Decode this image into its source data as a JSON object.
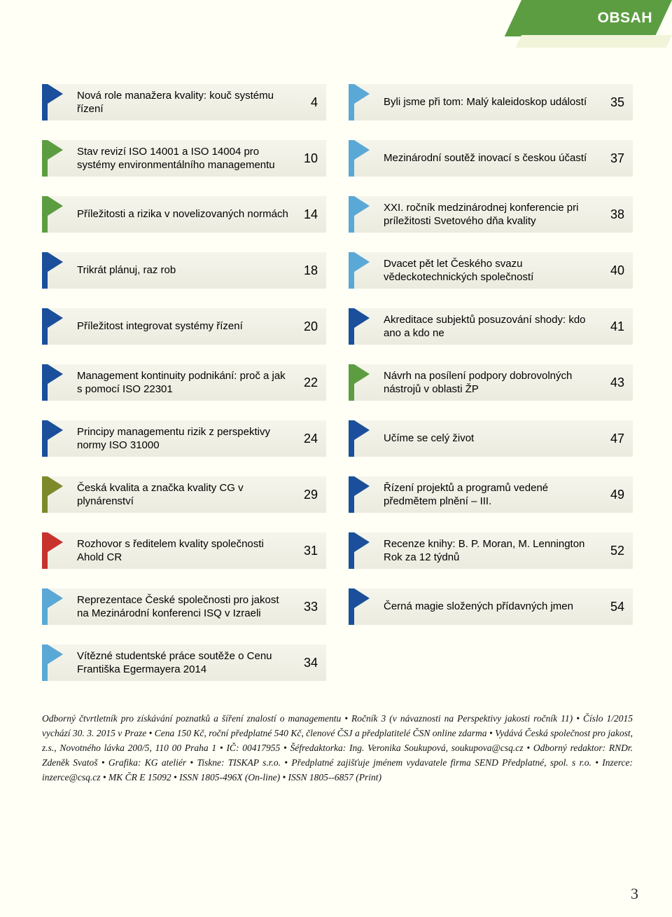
{
  "header": {
    "title": "OBSAH"
  },
  "accent_colors": {
    "dark_blue": "#1b4f9b",
    "green": "#5d9d42",
    "olive": "#7e8a2a",
    "red": "#c8322d",
    "light_blue": "#5aa8d6"
  },
  "background_color": "#fffff6",
  "item_bg_gradient": [
    "#f5f5ec",
    "#ebebdf"
  ],
  "entries_left": [
    {
      "title": "Nová role manažera kvality: kouč systému řízení",
      "page": 4,
      "accent": "#1b4f9b"
    },
    {
      "title": "Stav revizí ISO 14001 a ISO 14004 pro systémy environmentálního managementu",
      "page": 10,
      "accent": "#5d9d42"
    },
    {
      "title": "Příležitosti a rizika v novelizovaných normách",
      "page": 14,
      "accent": "#5d9d42"
    },
    {
      "title": "Trikrát plánuj, raz rob",
      "page": 18,
      "accent": "#1b4f9b"
    },
    {
      "title": "Příležitost integrovat systémy řízení",
      "page": 20,
      "accent": "#1b4f9b"
    },
    {
      "title": "Management kontinuity podnikání: proč a jak s pomocí ISO 22301",
      "page": 22,
      "accent": "#1b4f9b"
    },
    {
      "title": "Principy managementu rizik z perspektivy normy ISO 31000",
      "page": 24,
      "accent": "#1b4f9b"
    },
    {
      "title": "Česká kvalita a značka kvality CG v plynárenství",
      "page": 29,
      "accent": "#7e8a2a"
    },
    {
      "title": "Rozhovor s ředitelem kvality společnosti Ahold CR",
      "page": 31,
      "accent": "#c8322d"
    },
    {
      "title": "Reprezentace České společnosti pro jakost na Mezinárodní konferenci ISQ v Izraeli",
      "page": 33,
      "accent": "#5aa8d6"
    },
    {
      "title": "Vítězné studentské práce soutěže o Cenu Františka Egermayera 2014",
      "page": 34,
      "accent": "#5aa8d6"
    }
  ],
  "entries_right": [
    {
      "title": "Byli jsme při tom: Malý kaleidoskop událostí",
      "page": 35,
      "accent": "#5aa8d6"
    },
    {
      "title": "Mezinárodní soutěž inovací s českou účastí",
      "page": 37,
      "accent": "#5aa8d6"
    },
    {
      "title": "XXI. ročník medzinárodnej konferencie pri príležitosti Svetového dňa kvality",
      "page": 38,
      "accent": "#5aa8d6"
    },
    {
      "title": "Dvacet pět let Českého svazu vědeckotechnických společností",
      "page": 40,
      "accent": "#5aa8d6"
    },
    {
      "title": "Akreditace subjektů posuzování shody: kdo ano a kdo ne",
      "page": 41,
      "accent": "#1b4f9b"
    },
    {
      "title": "Návrh na posílení podpory dobrovolných nástrojů v oblasti ŽP",
      "page": 43,
      "accent": "#5d9d42"
    },
    {
      "title": "Učíme se celý život",
      "page": 47,
      "accent": "#1b4f9b"
    },
    {
      "title": "Řízení projektů a programů vedené předmětem plnění – III.",
      "page": 49,
      "accent": "#1b4f9b"
    },
    {
      "title": "Recenze knihy: B. P. Moran, M. Lennington Rok za 12 týdnů",
      "page": 52,
      "accent": "#1b4f9b"
    },
    {
      "title": "Černá magie složených přídavných jmen",
      "page": 54,
      "accent": "#1b4f9b"
    }
  ],
  "imprint": "Odborný čtvrtletník pro získávání poznatků a šíření znalostí o managementu • Ročník 3 (v návaznosti na Perspektivy jakosti ročník 11) • Číslo 1/2015 vychází 30. 3. 2015 v Praze • Cena 150 Kč, roční předplatné 540 Kč, členové ČSJ a předplatitelé ČSN online zdarma • Vydává Česká společnost pro jakost, z.s., Novotného lávka 200/5, 110 00 Praha 1 • IČ: 00417955 • Šéfredaktorka: Ing. Veronika Soukupová, soukupova@csq.cz • Odborný redaktor: RNDr. Zdeněk Svatoš • Grafika: KG ateliér • Tiskne: TISKAP s.r.o. • Předplatné zajišťuje jménem vydavatele firma SEND Předplatné, spol. s r.o. • Inzerce: inzerce@csq.cz • MK ČR E 15092 • ISSN 1805-496X (On-line) • ISSN 1805--6857 (Print)",
  "footer_page_number": "3"
}
